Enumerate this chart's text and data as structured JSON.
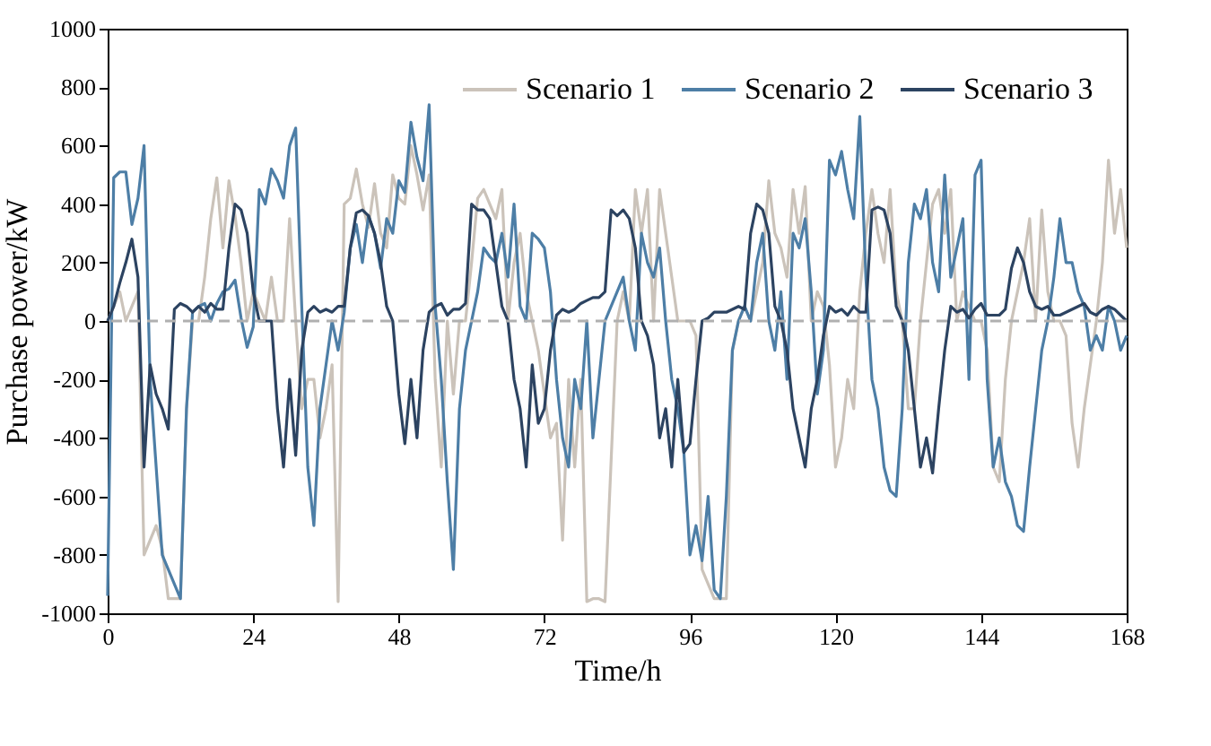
{
  "chart_data": {
    "type": "line",
    "xlabel": "Time/h",
    "ylabel": "Purchase power/kW",
    "xlim": [
      0,
      168
    ],
    "xticks": [
      0,
      24,
      48,
      72,
      96,
      120,
      144,
      168
    ],
    "ylim": [
      -1000,
      1000
    ],
    "yticks": [
      -1000,
      -800,
      -600,
      -400,
      -200,
      0,
      200,
      400,
      600,
      800,
      1000
    ],
    "grid": false,
    "legend": "top right",
    "line_style": "solid",
    "marker": "none",
    "ref_lines": [
      {
        "axis": "y",
        "value": 0,
        "color": "#b0b0b0",
        "line_style": "dashed"
      }
    ],
    "series": [
      {
        "name": "Scenario 1",
        "color": "#cbc3ba",
        "x": [
          0,
          2,
          3,
          4,
          5,
          6,
          8,
          9,
          10,
          11,
          12,
          13,
          14,
          15,
          16,
          17,
          18,
          19,
          20,
          21,
          22,
          23,
          24,
          25,
          26,
          27,
          28,
          29,
          30,
          31,
          32,
          33,
          34,
          35,
          36,
          37,
          38,
          39,
          40,
          41,
          42,
          43,
          44,
          45,
          46,
          47,
          48,
          49,
          50,
          51,
          52,
          53,
          54,
          55,
          56,
          57,
          58,
          59,
          60,
          61,
          62,
          63,
          64,
          65,
          66,
          67,
          68,
          69,
          70,
          71,
          72,
          73,
          74,
          75,
          76,
          77,
          78,
          79,
          80,
          81,
          82,
          84,
          85,
          86,
          87,
          88,
          89,
          90,
          91,
          92,
          93,
          94,
          95,
          96,
          97,
          98,
          99,
          100,
          101,
          102,
          103,
          104,
          105,
          106,
          107,
          108,
          109,
          110,
          111,
          112,
          113,
          114,
          115,
          116,
          117,
          118,
          119,
          120,
          121,
          122,
          123,
          124,
          125,
          126,
          127,
          128,
          129,
          130,
          131,
          132,
          133,
          134,
          135,
          136,
          137,
          138,
          139,
          140,
          141,
          142,
          143,
          144,
          145,
          146,
          147,
          148,
          149,
          150,
          151,
          152,
          153,
          154,
          155,
          156,
          157,
          158,
          159,
          160,
          161,
          162,
          163,
          164,
          165,
          166,
          167,
          168
        ],
        "values": [
          0,
          100,
          0,
          50,
          100,
          -800,
          -700,
          -780,
          -950,
          -950,
          -950,
          -300,
          0,
          0,
          150,
          350,
          490,
          250,
          480,
          360,
          200,
          0,
          100,
          50,
          0,
          150,
          0,
          0,
          350,
          0,
          -300,
          -200,
          -200,
          -400,
          -300,
          -150,
          -960,
          400,
          420,
          520,
          400,
          320,
          470,
          300,
          250,
          500,
          420,
          400,
          600,
          500,
          380,
          500,
          -200,
          -500,
          0,
          -250,
          0,
          0,
          200,
          420,
          450,
          400,
          350,
          450,
          0,
          200,
          300,
          100,
          0,
          -100,
          -250,
          -400,
          -350,
          -750,
          -200,
          -500,
          -200,
          -960,
          -950,
          -950,
          -960,
          0,
          100,
          0,
          450,
          300,
          450,
          0,
          450,
          300,
          150,
          0,
          0,
          0,
          -50,
          -850,
          -900,
          -950,
          -950,
          -950,
          -100,
          0,
          50,
          0,
          100,
          200,
          480,
          300,
          250,
          150,
          450,
          300,
          460,
          0,
          100,
          50,
          -150,
          -500,
          -400,
          -200,
          -300,
          100,
          300,
          450,
          300,
          200,
          450,
          100,
          0,
          -300,
          -300,
          0,
          200,
          400,
          450,
          300,
          450,
          0,
          100,
          50,
          0,
          0,
          -100,
          -500,
          -550,
          -200,
          0,
          100,
          200,
          350,
          0,
          380,
          100,
          0,
          0,
          -50,
          -350,
          -500,
          -300,
          -150,
          0,
          200,
          550,
          300,
          450,
          250
        ]
      },
      {
        "name": "Scenario 2",
        "color": "#4d7ea6",
        "x": [
          0,
          1,
          2,
          3,
          4,
          5,
          6,
          7,
          8,
          9,
          10,
          11,
          12,
          13,
          14,
          15,
          16,
          17,
          18,
          19,
          20,
          21,
          22,
          23,
          24,
          25,
          26,
          27,
          28,
          29,
          30,
          31,
          32,
          33,
          34,
          35,
          36,
          37,
          38,
          39,
          40,
          41,
          42,
          43,
          44,
          45,
          46,
          47,
          48,
          49,
          50,
          51,
          52,
          53,
          54,
          55,
          56,
          57,
          58,
          59,
          60,
          61,
          62,
          63,
          64,
          65,
          66,
          67,
          68,
          69,
          70,
          71,
          72,
          73,
          74,
          75,
          76,
          77,
          78,
          79,
          80,
          81,
          82,
          83,
          84,
          85,
          86,
          87,
          88,
          89,
          90,
          91,
          92,
          93,
          94,
          95,
          96,
          97,
          98,
          99,
          100,
          101,
          102,
          103,
          104,
          105,
          106,
          107,
          108,
          109,
          110,
          111,
          112,
          113,
          114,
          115,
          116,
          117,
          118,
          119,
          120,
          121,
          122,
          123,
          124,
          125,
          126,
          127,
          128,
          129,
          130,
          131,
          132,
          133,
          134,
          135,
          136,
          137,
          138,
          139,
          140,
          141,
          142,
          143,
          144,
          145,
          146,
          147,
          148,
          149,
          150,
          151,
          152,
          153,
          154,
          155,
          156,
          157,
          158,
          159,
          160,
          161,
          162,
          163,
          164,
          165,
          166,
          167,
          168
        ],
        "values": [
          -940,
          490,
          510,
          510,
          330,
          420,
          600,
          -200,
          -500,
          -800,
          -850,
          -900,
          -950,
          -300,
          30,
          50,
          60,
          0,
          60,
          100,
          110,
          140,
          10,
          -90,
          -20,
          450,
          400,
          520,
          480,
          420,
          600,
          660,
          50,
          -500,
          -700,
          -300,
          -150,
          0,
          -100,
          30,
          250,
          330,
          200,
          360,
          300,
          180,
          350,
          300,
          480,
          440,
          680,
          560,
          480,
          740,
          50,
          -200,
          -550,
          -850,
          -300,
          -100,
          0,
          100,
          250,
          220,
          200,
          300,
          150,
          400,
          50,
          0,
          300,
          280,
          250,
          100,
          -200,
          -400,
          -500,
          -200,
          -300,
          0,
          -400,
          -200,
          0,
          50,
          100,
          150,
          0,
          -100,
          300,
          200,
          150,
          250,
          0,
          -200,
          -300,
          -450,
          -800,
          -700,
          -820,
          -600,
          -920,
          -950,
          -600,
          -100,
          0,
          50,
          0,
          200,
          300,
          0,
          -100,
          100,
          -200,
          300,
          250,
          350,
          100,
          -250,
          -100,
          550,
          500,
          580,
          450,
          350,
          700,
          150,
          -200,
          -300,
          -500,
          -580,
          -600,
          -300,
          200,
          400,
          350,
          450,
          200,
          100,
          500,
          150,
          250,
          350,
          -200,
          500,
          550,
          -200,
          -500,
          -400,
          -550,
          -600,
          -700,
          -720,
          -500,
          -300,
          -100,
          0,
          150,
          350,
          200,
          200,
          100,
          50,
          -100,
          -50,
          -100,
          50,
          0,
          -100,
          -50
        ]
      },
      {
        "name": "Scenario 3",
        "color": "#2c4361",
        "x": [
          0,
          1,
          2,
          3,
          4,
          5,
          6,
          7,
          8,
          9,
          10,
          11,
          12,
          13,
          14,
          15,
          16,
          17,
          18,
          19,
          20,
          21,
          22,
          23,
          24,
          25,
          26,
          27,
          28,
          29,
          30,
          31,
          32,
          33,
          34,
          35,
          36,
          37,
          38,
          39,
          40,
          41,
          42,
          43,
          44,
          45,
          46,
          47,
          48,
          49,
          50,
          51,
          52,
          53,
          54,
          55,
          56,
          57,
          58,
          59,
          60,
          61,
          62,
          63,
          64,
          65,
          66,
          67,
          68,
          69,
          70,
          71,
          72,
          73,
          74,
          75,
          76,
          77,
          78,
          79,
          80,
          81,
          82,
          83,
          84,
          85,
          86,
          87,
          88,
          89,
          90,
          91,
          92,
          93,
          94,
          95,
          96,
          97,
          98,
          99,
          100,
          101,
          102,
          103,
          104,
          105,
          106,
          107,
          108,
          109,
          110,
          111,
          112,
          113,
          114,
          115,
          116,
          117,
          118,
          119,
          120,
          121,
          122,
          123,
          124,
          125,
          126,
          127,
          128,
          129,
          130,
          131,
          132,
          133,
          134,
          135,
          136,
          137,
          138,
          139,
          140,
          141,
          142,
          143,
          144,
          145,
          146,
          147,
          148,
          149,
          150,
          151,
          152,
          153,
          154,
          155,
          156,
          157,
          158,
          159,
          160,
          161,
          162,
          163,
          164,
          165,
          166,
          167,
          168
        ],
        "values": [
          0,
          50,
          130,
          200,
          280,
          150,
          -500,
          -150,
          -250,
          -300,
          -370,
          40,
          60,
          50,
          30,
          50,
          30,
          60,
          40,
          40,
          250,
          400,
          380,
          300,
          100,
          0,
          0,
          0,
          -300,
          -500,
          -200,
          -460,
          -100,
          30,
          50,
          30,
          40,
          30,
          50,
          50,
          250,
          370,
          380,
          360,
          300,
          200,
          50,
          0,
          -250,
          -420,
          -200,
          -400,
          -100,
          30,
          50,
          60,
          20,
          40,
          40,
          60,
          400,
          380,
          380,
          350,
          200,
          50,
          0,
          -200,
          -300,
          -500,
          -150,
          -350,
          -300,
          -100,
          20,
          40,
          30,
          40,
          60,
          70,
          80,
          80,
          100,
          380,
          360,
          380,
          350,
          250,
          0,
          -50,
          -150,
          -400,
          -300,
          -500,
          -200,
          -450,
          -420,
          -200,
          0,
          10,
          30,
          30,
          30,
          40,
          50,
          40,
          300,
          400,
          380,
          300,
          50,
          0,
          -100,
          -300,
          -400,
          -500,
          -300,
          -200,
          -50,
          50,
          30,
          40,
          20,
          50,
          30,
          30,
          380,
          390,
          380,
          300,
          50,
          0,
          -100,
          -300,
          -500,
          -400,
          -520,
          -300,
          -100,
          50,
          30,
          40,
          10,
          40,
          60,
          20,
          20,
          20,
          40,
          180,
          250,
          200,
          100,
          50,
          40,
          50,
          20,
          20,
          30,
          40,
          50,
          60,
          30,
          20,
          40,
          50,
          40,
          20,
          0
        ]
      }
    ]
  }
}
